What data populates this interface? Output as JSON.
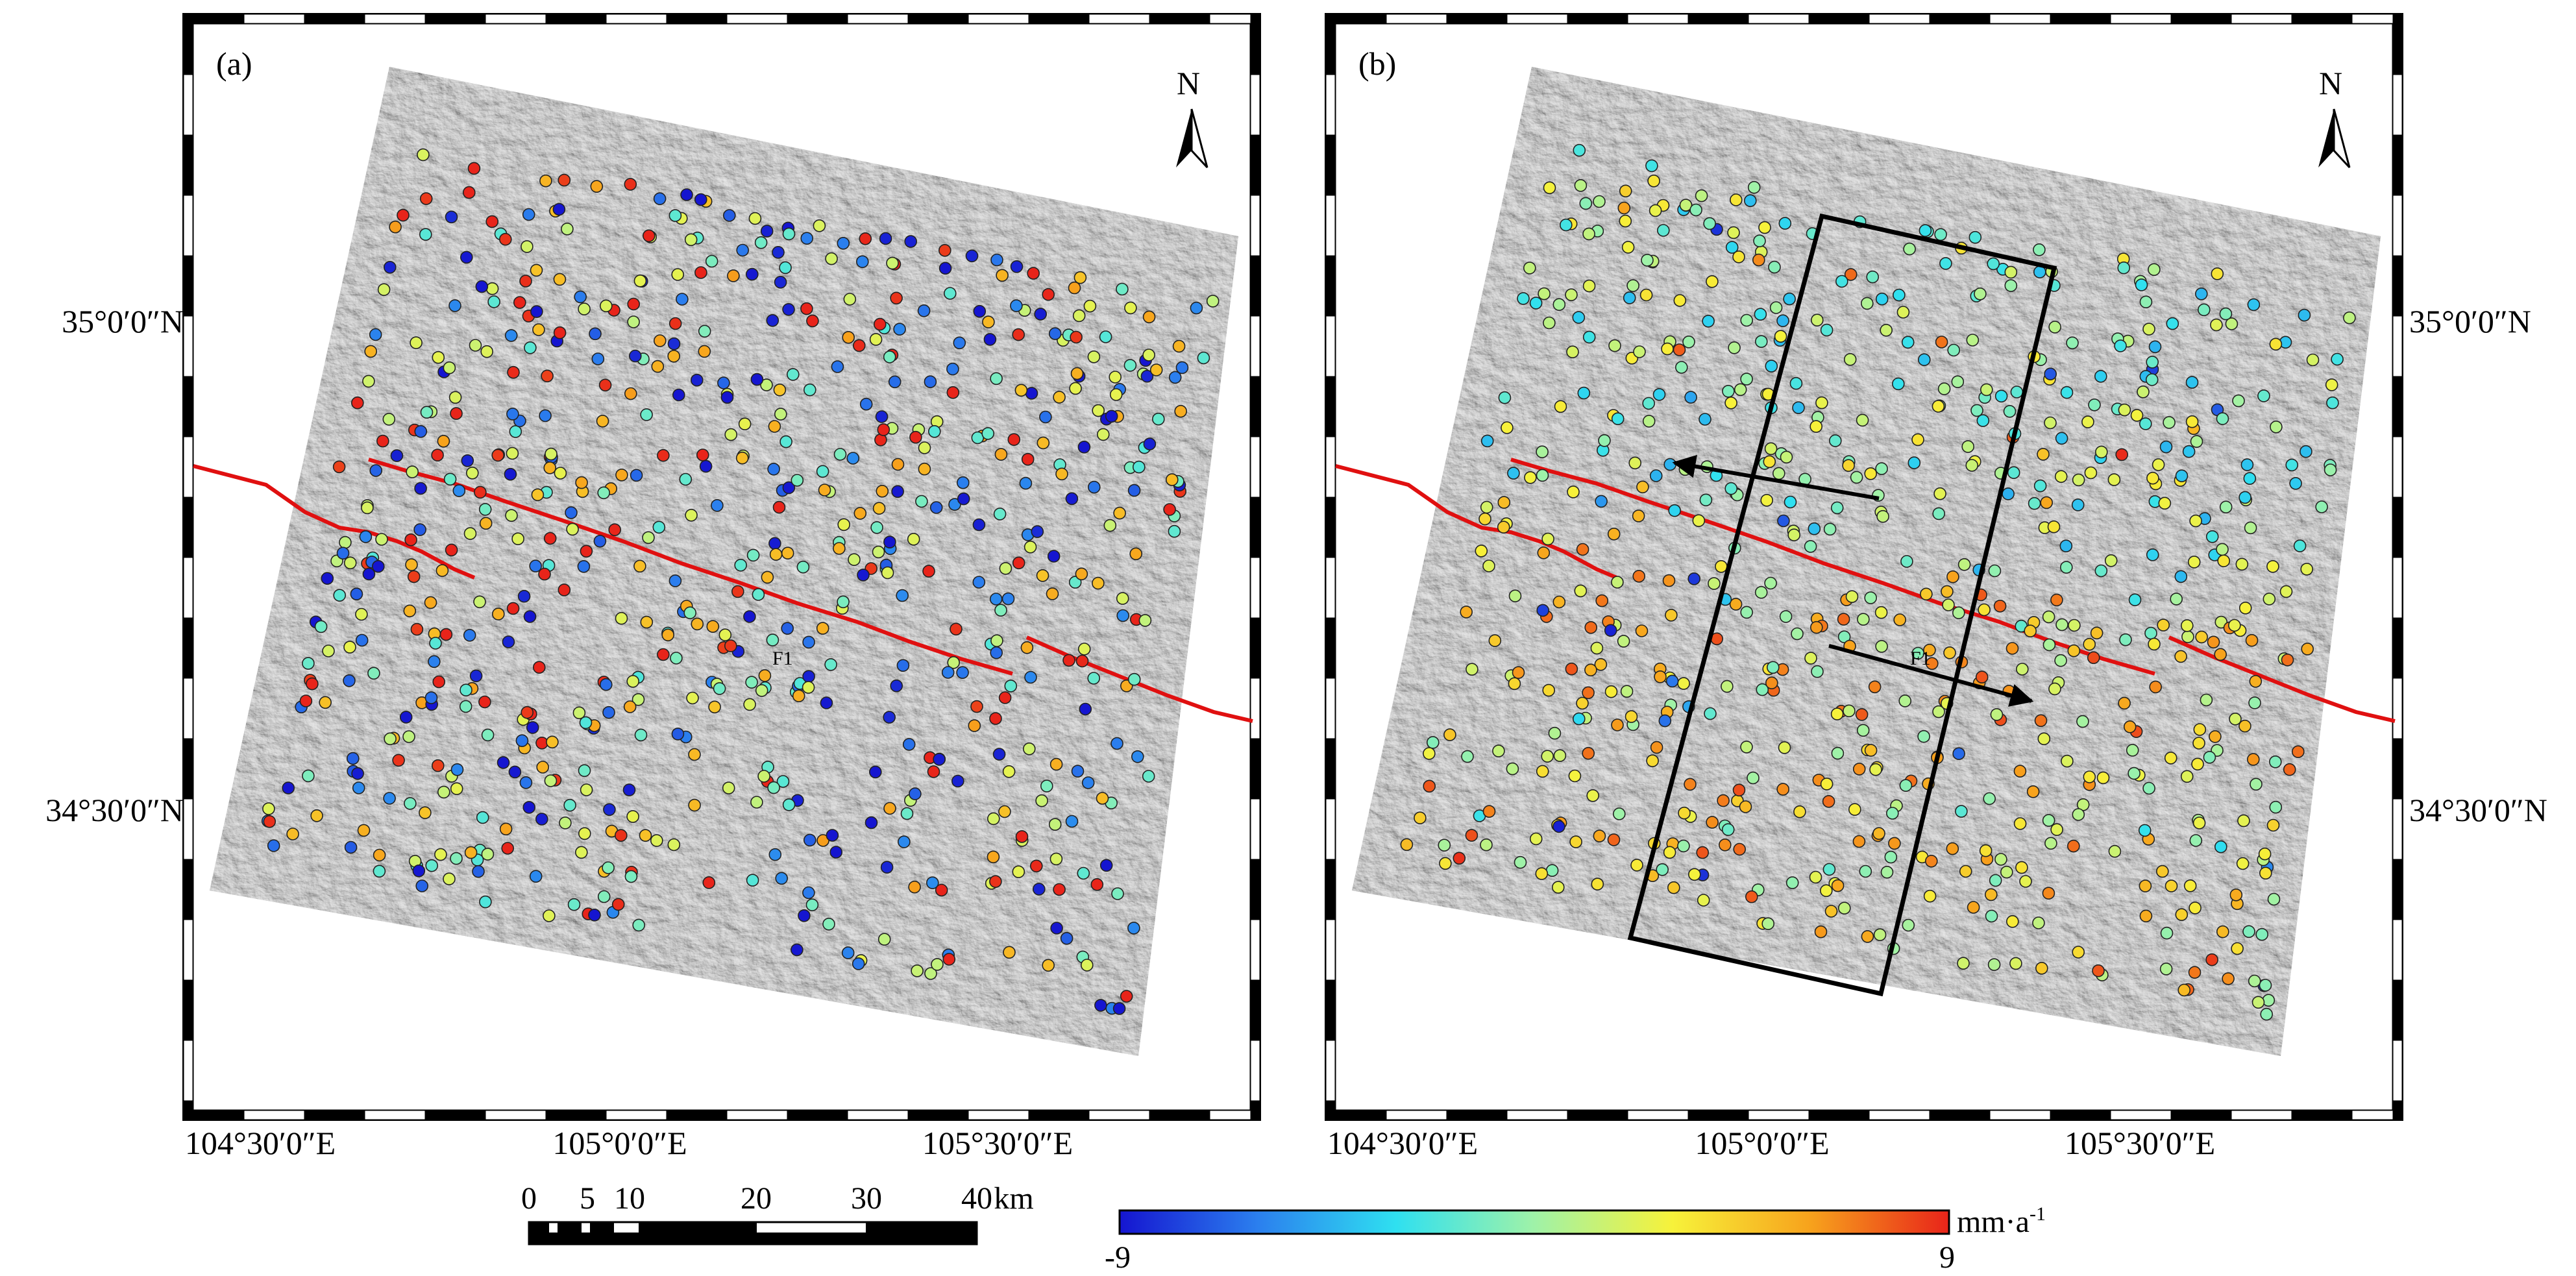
{
  "panels": [
    {
      "id": "a",
      "label": "(a)",
      "north_label": "N",
      "lat_labels": [
        "35°0′0″N",
        "34°30′0″N"
      ],
      "lon_labels": [
        "104°30′0″E",
        "105°0′0″E",
        "105°30′0″E"
      ],
      "fault_label": "F1",
      "points_count": 700
    },
    {
      "id": "b",
      "label": "(b)",
      "north_label": "N",
      "lat_labels": [
        "35°0′0″N",
        "34°30′0″N"
      ],
      "lon_labels": [
        "104°30′0″E",
        "105°0′0″E",
        "105°30′0″E"
      ],
      "fault_label": "F1",
      "points_count": 700
    }
  ],
  "scale_bar": {
    "ticks": [
      "0",
      "5",
      "10",
      "20",
      "30",
      "40"
    ],
    "unit": "km"
  },
  "color_bar": {
    "min_label": "-9",
    "max_label": "9",
    "unit": "mm·a",
    "unit_sup": "-1",
    "min": -9,
    "max": 9,
    "colors": [
      "#1515d0",
      "#2b7fee",
      "#2fe0f0",
      "#9ff2a8",
      "#f7f23a",
      "#f7a21c",
      "#e8241a"
    ]
  },
  "colors": {
    "fault": "#e01010",
    "frame": "#000000",
    "hillshade": "#b4b4b4"
  }
}
